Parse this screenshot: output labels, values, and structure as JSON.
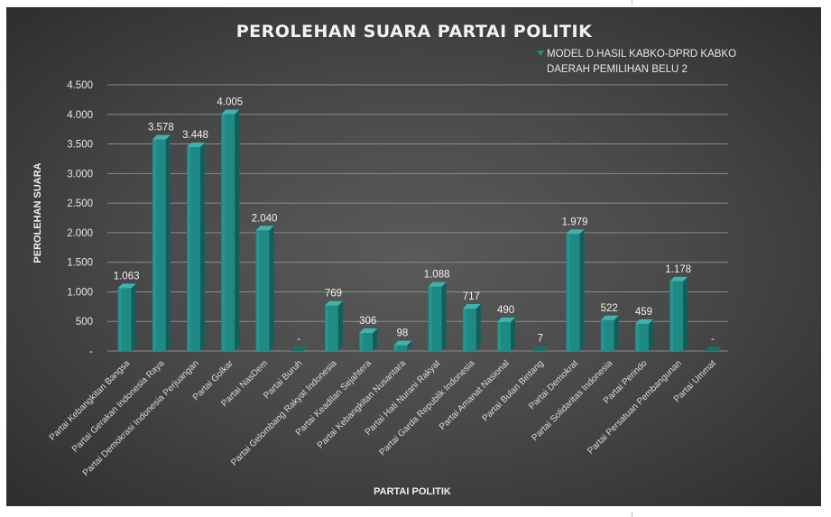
{
  "chart_data": {
    "type": "bar",
    "title": "PEROLEHAN SUARA PARTAI POLITIK",
    "xlabel": "PARTAI POLITIK",
    "ylabel": "PEROLEHAN SUARA",
    "ylim": [
      0,
      4500
    ],
    "yticks": [
      0,
      500,
      1000,
      1500,
      2000,
      2500,
      3000,
      3500,
      4000,
      4500
    ],
    "ytick_labels": [
      "-",
      "500",
      "1.000",
      "1.500",
      "2.000",
      "2.500",
      "3.000",
      "3.500",
      "4.000",
      "4.500"
    ],
    "grid": true,
    "legend_position": "top-right",
    "series": [
      {
        "name": "MODEL D.HASIL KABKO-DPRD KABKO DAERAH PEMILIHAN BELU 2",
        "color": "#1f8a84",
        "values": [
          1063,
          3578,
          3448,
          4005,
          2040,
          0,
          769,
          306,
          98,
          1088,
          717,
          490,
          7,
          1979,
          522,
          459,
          1178,
          0
        ],
        "data_labels": [
          "1.063",
          "3.578",
          "3.448",
          "4.005",
          "2.040",
          "-",
          "769",
          "306",
          "98",
          "1.088",
          "717",
          "490",
          "7",
          "1.979",
          "522",
          "459",
          "1.178",
          "-"
        ]
      }
    ],
    "categories": [
      "Partai Kebangkitan Bangsa",
      "Partai Gerakan Indonesia Raya",
      "Partai Demokrasi Indonesia Perjuangan",
      "Partai Golkar",
      "Partai NasDem",
      "Partai Buruh",
      "Partai Gelombang Rakyat Indonesia",
      "Partai Keadilan Sejahtera",
      "Partai Kebangkitan Nusantara",
      "Partai Hati Nurani Rakyat",
      "Partai Garda Republik Indonesia",
      "Partai Amanat Nasional",
      "Partai Bulan Bintang",
      "Partai Demokrat",
      "Partai Solidaritas Indonesia",
      "Partai Perindo",
      "Partai Persatuan Pembangunan",
      "Partai Ummat"
    ]
  }
}
